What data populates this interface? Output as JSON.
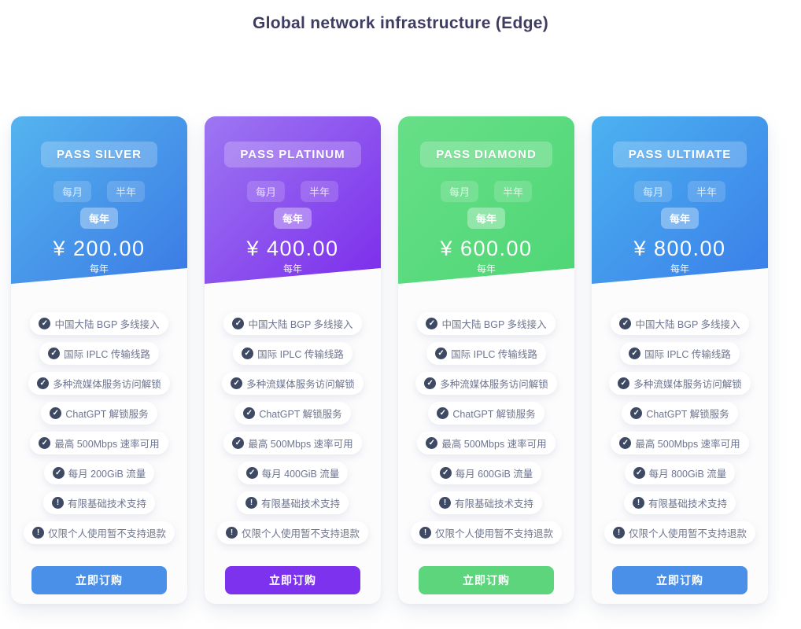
{
  "page": {
    "title": "Global network infrastructure (Edge)"
  },
  "billing_tabs": {
    "monthly": "每月",
    "half_year": "半年",
    "yearly": "每年"
  },
  "labels": {
    "order_button": "立即订购"
  },
  "plans": [
    {
      "name": "PASS SILVER",
      "price_display": "¥ 200.00",
      "cycle": "每年",
      "gradient_from": "#55b4ef",
      "gradient_to": "#3b7ae5",
      "button_color": "#4a90e8",
      "features": [
        {
          "icon": "check",
          "text": "中国大陆 BGP 多线接入"
        },
        {
          "icon": "check",
          "text": "国际 IPLC 传输线路"
        },
        {
          "icon": "check",
          "text": "多种流媒体服务访问解锁"
        },
        {
          "icon": "check",
          "text": "ChatGPT 解锁服务"
        },
        {
          "icon": "check",
          "text": "最高 500Mbps 速率可用"
        },
        {
          "icon": "check",
          "text": "每月 200GiB 流量"
        },
        {
          "icon": "exclamation",
          "text": "有限基础技术支持"
        },
        {
          "icon": "exclamation",
          "text": "仅限个人使用暂不支持退款"
        }
      ]
    },
    {
      "name": "PASS PLATINUM",
      "price_display": "¥ 400.00",
      "cycle": "每年",
      "gradient_from": "#9d77f2",
      "gradient_to": "#7c2deb",
      "button_color": "#7d33ee",
      "features": [
        {
          "icon": "check",
          "text": "中国大陆 BGP 多线接入"
        },
        {
          "icon": "check",
          "text": "国际 IPLC 传输线路"
        },
        {
          "icon": "check",
          "text": "多种流媒体服务访问解锁"
        },
        {
          "icon": "check",
          "text": "ChatGPT 解锁服务"
        },
        {
          "icon": "check",
          "text": "最高 500Mbps 速率可用"
        },
        {
          "icon": "check",
          "text": "每月 400GiB 流量"
        },
        {
          "icon": "exclamation",
          "text": "有限基础技术支持"
        },
        {
          "icon": "exclamation",
          "text": "仅限个人使用暂不支持退款"
        }
      ]
    },
    {
      "name": "PASS DIAMOND",
      "price_display": "¥ 600.00",
      "cycle": "每年",
      "gradient_from": "#67df88",
      "gradient_to": "#4fd675",
      "button_color": "#5cd57d",
      "features": [
        {
          "icon": "check",
          "text": "中国大陆 BGP 多线接入"
        },
        {
          "icon": "check",
          "text": "国际 IPLC 传输线路"
        },
        {
          "icon": "check",
          "text": "多种流媒体服务访问解锁"
        },
        {
          "icon": "check",
          "text": "ChatGPT 解锁服务"
        },
        {
          "icon": "check",
          "text": "最高 500Mbps 速率可用"
        },
        {
          "icon": "check",
          "text": "每月 600GiB 流量"
        },
        {
          "icon": "exclamation",
          "text": "有限基础技术支持"
        },
        {
          "icon": "exclamation",
          "text": "仅限个人使用暂不支持退款"
        }
      ]
    },
    {
      "name": "PASS ULTIMATE",
      "price_display": "¥ 800.00",
      "cycle": "每年",
      "gradient_from": "#4cb2f0",
      "gradient_to": "#3a7ee9",
      "button_color": "#4a90e8",
      "features": [
        {
          "icon": "check",
          "text": "中国大陆 BGP 多线接入"
        },
        {
          "icon": "check",
          "text": "国际 IPLC 传输线路"
        },
        {
          "icon": "check",
          "text": "多种流媒体服务访问解锁"
        },
        {
          "icon": "check",
          "text": "ChatGPT 解锁服务"
        },
        {
          "icon": "check",
          "text": "最高 500Mbps 速率可用"
        },
        {
          "icon": "check",
          "text": "每月 800GiB 流量"
        },
        {
          "icon": "exclamation",
          "text": "有限基础技术支持"
        },
        {
          "icon": "exclamation",
          "text": "仅限个人使用暂不支持退款"
        }
      ]
    }
  ]
}
